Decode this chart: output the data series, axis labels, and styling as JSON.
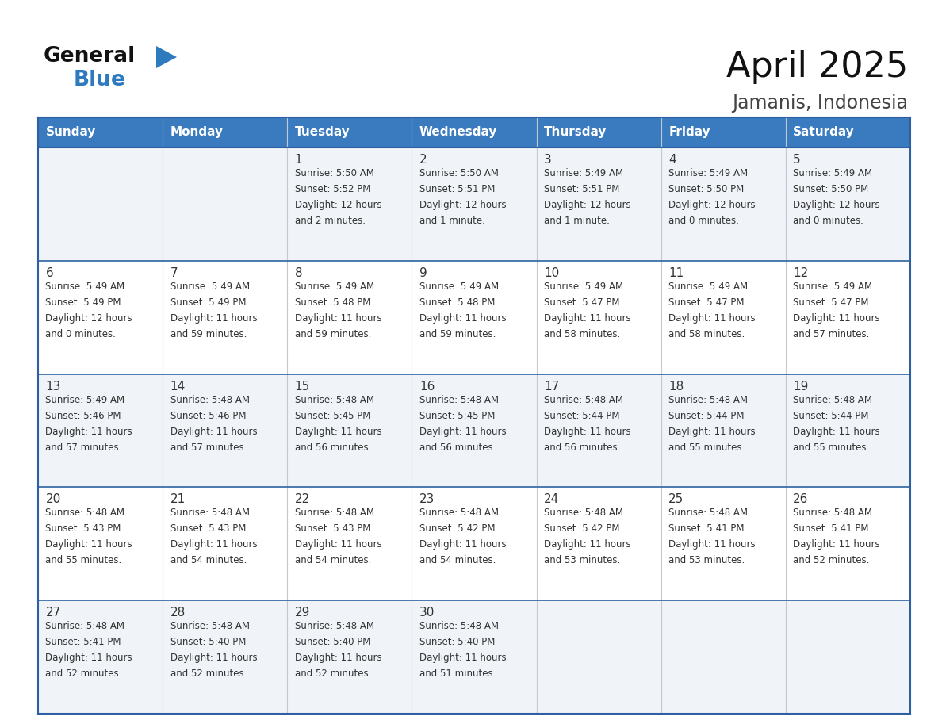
{
  "title": "April 2025",
  "subtitle": "Jamanis, Indonesia",
  "header_color": "#3a7bbf",
  "header_text_color": "#ffffff",
  "cell_bg_odd": "#f0f4f8",
  "cell_bg_even": "#ffffff",
  "border_color": "#2e5fa3",
  "row_line_color": "#3a6ea8",
  "col_line_color": "#c0c8d0",
  "text_color": "#333333",
  "days_of_week": [
    "Sunday",
    "Monday",
    "Tuesday",
    "Wednesday",
    "Thursday",
    "Friday",
    "Saturday"
  ],
  "calendar_data": [
    [
      {
        "day": "",
        "info": ""
      },
      {
        "day": "",
        "info": ""
      },
      {
        "day": "1",
        "info": "Sunrise: 5:50 AM\nSunset: 5:52 PM\nDaylight: 12 hours\nand 2 minutes."
      },
      {
        "day": "2",
        "info": "Sunrise: 5:50 AM\nSunset: 5:51 PM\nDaylight: 12 hours\nand 1 minute."
      },
      {
        "day": "3",
        "info": "Sunrise: 5:49 AM\nSunset: 5:51 PM\nDaylight: 12 hours\nand 1 minute."
      },
      {
        "day": "4",
        "info": "Sunrise: 5:49 AM\nSunset: 5:50 PM\nDaylight: 12 hours\nand 0 minutes."
      },
      {
        "day": "5",
        "info": "Sunrise: 5:49 AM\nSunset: 5:50 PM\nDaylight: 12 hours\nand 0 minutes."
      }
    ],
    [
      {
        "day": "6",
        "info": "Sunrise: 5:49 AM\nSunset: 5:49 PM\nDaylight: 12 hours\nand 0 minutes."
      },
      {
        "day": "7",
        "info": "Sunrise: 5:49 AM\nSunset: 5:49 PM\nDaylight: 11 hours\nand 59 minutes."
      },
      {
        "day": "8",
        "info": "Sunrise: 5:49 AM\nSunset: 5:48 PM\nDaylight: 11 hours\nand 59 minutes."
      },
      {
        "day": "9",
        "info": "Sunrise: 5:49 AM\nSunset: 5:48 PM\nDaylight: 11 hours\nand 59 minutes."
      },
      {
        "day": "10",
        "info": "Sunrise: 5:49 AM\nSunset: 5:47 PM\nDaylight: 11 hours\nand 58 minutes."
      },
      {
        "day": "11",
        "info": "Sunrise: 5:49 AM\nSunset: 5:47 PM\nDaylight: 11 hours\nand 58 minutes."
      },
      {
        "day": "12",
        "info": "Sunrise: 5:49 AM\nSunset: 5:47 PM\nDaylight: 11 hours\nand 57 minutes."
      }
    ],
    [
      {
        "day": "13",
        "info": "Sunrise: 5:49 AM\nSunset: 5:46 PM\nDaylight: 11 hours\nand 57 minutes."
      },
      {
        "day": "14",
        "info": "Sunrise: 5:48 AM\nSunset: 5:46 PM\nDaylight: 11 hours\nand 57 minutes."
      },
      {
        "day": "15",
        "info": "Sunrise: 5:48 AM\nSunset: 5:45 PM\nDaylight: 11 hours\nand 56 minutes."
      },
      {
        "day": "16",
        "info": "Sunrise: 5:48 AM\nSunset: 5:45 PM\nDaylight: 11 hours\nand 56 minutes."
      },
      {
        "day": "17",
        "info": "Sunrise: 5:48 AM\nSunset: 5:44 PM\nDaylight: 11 hours\nand 56 minutes."
      },
      {
        "day": "18",
        "info": "Sunrise: 5:48 AM\nSunset: 5:44 PM\nDaylight: 11 hours\nand 55 minutes."
      },
      {
        "day": "19",
        "info": "Sunrise: 5:48 AM\nSunset: 5:44 PM\nDaylight: 11 hours\nand 55 minutes."
      }
    ],
    [
      {
        "day": "20",
        "info": "Sunrise: 5:48 AM\nSunset: 5:43 PM\nDaylight: 11 hours\nand 55 minutes."
      },
      {
        "day": "21",
        "info": "Sunrise: 5:48 AM\nSunset: 5:43 PM\nDaylight: 11 hours\nand 54 minutes."
      },
      {
        "day": "22",
        "info": "Sunrise: 5:48 AM\nSunset: 5:43 PM\nDaylight: 11 hours\nand 54 minutes."
      },
      {
        "day": "23",
        "info": "Sunrise: 5:48 AM\nSunset: 5:42 PM\nDaylight: 11 hours\nand 54 minutes."
      },
      {
        "day": "24",
        "info": "Sunrise: 5:48 AM\nSunset: 5:42 PM\nDaylight: 11 hours\nand 53 minutes."
      },
      {
        "day": "25",
        "info": "Sunrise: 5:48 AM\nSunset: 5:41 PM\nDaylight: 11 hours\nand 53 minutes."
      },
      {
        "day": "26",
        "info": "Sunrise: 5:48 AM\nSunset: 5:41 PM\nDaylight: 11 hours\nand 52 minutes."
      }
    ],
    [
      {
        "day": "27",
        "info": "Sunrise: 5:48 AM\nSunset: 5:41 PM\nDaylight: 11 hours\nand 52 minutes."
      },
      {
        "day": "28",
        "info": "Sunrise: 5:48 AM\nSunset: 5:40 PM\nDaylight: 11 hours\nand 52 minutes."
      },
      {
        "day": "29",
        "info": "Sunrise: 5:48 AM\nSunset: 5:40 PM\nDaylight: 11 hours\nand 52 minutes."
      },
      {
        "day": "30",
        "info": "Sunrise: 5:48 AM\nSunset: 5:40 PM\nDaylight: 11 hours\nand 51 minutes."
      },
      {
        "day": "",
        "info": ""
      },
      {
        "day": "",
        "info": ""
      },
      {
        "day": "",
        "info": ""
      }
    ]
  ],
  "logo_triangle_color": "#2e7abf",
  "general_blue_color": "#2e7abf",
  "title_fontsize": 32,
  "subtitle_fontsize": 17,
  "header_fontsize": 11,
  "day_num_fontsize": 11,
  "info_fontsize": 8.5
}
